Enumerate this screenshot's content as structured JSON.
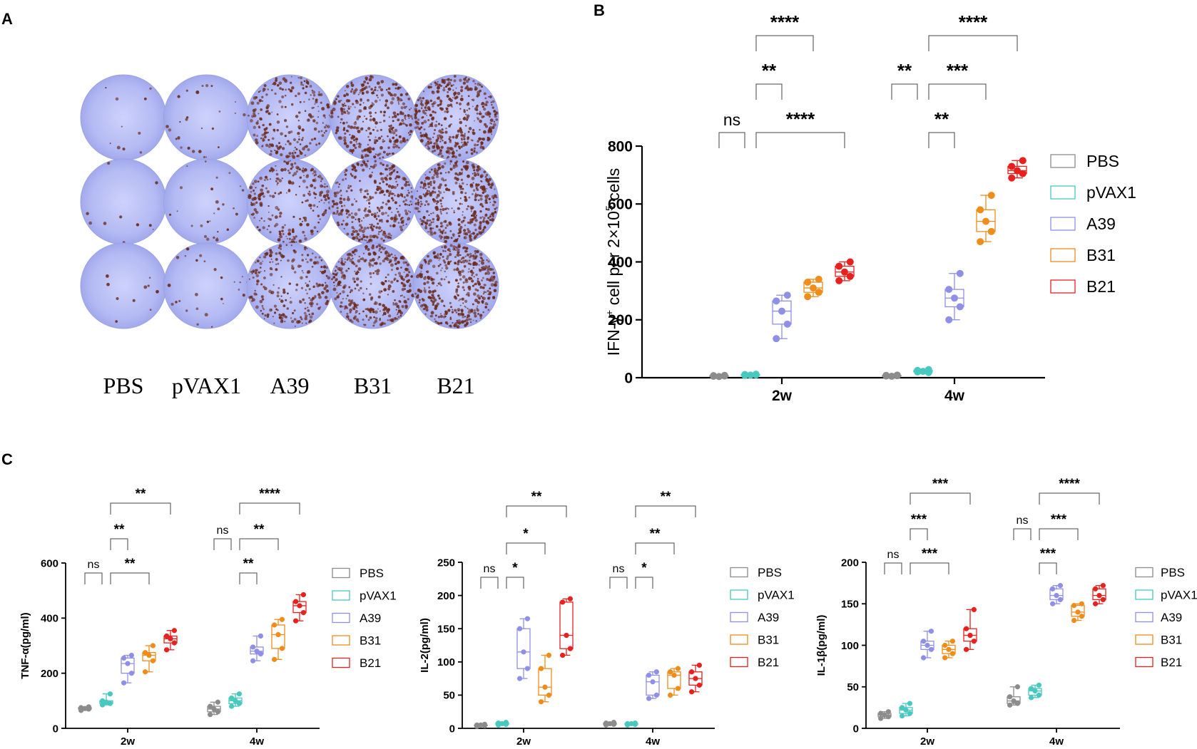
{
  "panel_letters": {
    "a": "A",
    "b": "B",
    "c": "C"
  },
  "colors": {
    "PBS": "#8c8c8c",
    "pVAX1": "#48c9c0",
    "A39": "#8f8fe8",
    "B31": "#f08c1a",
    "B21": "#e8201e",
    "well": "#b3b9f2",
    "spot": "#6a2a1c"
  },
  "panel_a": {
    "group_labels": [
      "PBS",
      "pVAX1",
      "A39",
      "B31",
      "B21"
    ],
    "spot_density": [
      0.02,
      0.06,
      0.55,
      0.8,
      1.0
    ]
  },
  "chart_data": [
    {
      "id": "B",
      "type": "box",
      "title": "",
      "xlabel": "",
      "ylabel_parts": [
        "IFN-γ",
        "+",
        " cell per 2×10",
        "5",
        " cells"
      ],
      "ylim": [
        0,
        800
      ],
      "yticks": [
        0,
        200,
        400,
        600,
        800
      ],
      "categories": [
        "2w",
        "4w"
      ],
      "legend": [
        "PBS",
        "pVAX1",
        "A39",
        "B31",
        "B21"
      ],
      "series": [
        {
          "name": "PBS",
          "values": [
            [
              5,
              8,
              4,
              7,
              6
            ],
            [
              6,
              9,
              5,
              8,
              7
            ]
          ]
        },
        {
          "name": "pVAX1",
          "values": [
            [
              8,
              12,
              9,
              11,
              10
            ],
            [
              20,
              28,
              22,
              25,
              18
            ]
          ]
        },
        {
          "name": "A39",
          "values": [
            [
              135,
              185,
              230,
              265,
              285
            ],
            [
              200,
              245,
              275,
              305,
              360
            ]
          ]
        },
        {
          "name": "B31",
          "values": [
            [
              280,
              295,
              310,
              330,
              340
            ],
            [
              470,
              505,
              540,
              580,
              630
            ]
          ]
        },
        {
          "name": "B21",
          "values": [
            [
              335,
              350,
              365,
              385,
              400
            ],
            [
              690,
              705,
              715,
              730,
              750
            ]
          ]
        }
      ],
      "brackets": [
        {
          "cat": 0,
          "from": 0,
          "to": 1,
          "level": 0,
          "label": "ns"
        },
        {
          "cat": 0,
          "from": 1,
          "to": 4,
          "level": 0,
          "label": "****"
        },
        {
          "cat": 0,
          "from": 1,
          "to": 2,
          "level": 1,
          "label": "**"
        },
        {
          "cat": 0,
          "from": 1,
          "to": 3,
          "level": 2,
          "label": "****"
        },
        {
          "cat": 1,
          "from": 1,
          "to": 2,
          "level": 0,
          "label": "**"
        },
        {
          "cat": 1,
          "from": 0,
          "to": 1,
          "level": 1,
          "label": "**"
        },
        {
          "cat": 1,
          "from": 1,
          "to": 3,
          "level": 1,
          "label": "***"
        },
        {
          "cat": 1,
          "from": 1,
          "to": 4,
          "level": 2,
          "label": "****"
        }
      ]
    },
    {
      "id": "C1",
      "type": "box",
      "ylabel": "TNF-α(pg/ml)",
      "ylim": [
        0,
        600
      ],
      "yticks": [
        0,
        200,
        400,
        600
      ],
      "categories": [
        "2w",
        "4w"
      ],
      "legend": [
        "PBS",
        "pVAX1",
        "A39",
        "B31",
        "B21"
      ],
      "series": [
        {
          "name": "PBS",
          "values": [
            [
              65,
              70,
              72,
              75,
              78
            ],
            [
              50,
              60,
              70,
              80,
              95
            ]
          ]
        },
        {
          "name": "pVAX1",
          "values": [
            [
              85,
              90,
              95,
              100,
              125
            ],
            [
              80,
              90,
              100,
              110,
              125
            ]
          ]
        },
        {
          "name": "A39",
          "values": [
            [
              165,
              200,
              235,
              255,
              265
            ],
            [
              245,
              270,
              280,
              295,
              335
            ]
          ]
        },
        {
          "name": "B31",
          "values": [
            [
              205,
              245,
              265,
              275,
              300
            ],
            [
              250,
              290,
              340,
              375,
              395
            ]
          ]
        },
        {
          "name": "B21",
          "values": [
            [
              285,
              310,
              325,
              335,
              355
            ],
            [
              390,
              420,
              445,
              460,
              485
            ]
          ]
        }
      ],
      "brackets": [
        {
          "cat": 0,
          "from": 0,
          "to": 1,
          "level": 0,
          "label": "ns"
        },
        {
          "cat": 0,
          "from": 1,
          "to": 3,
          "level": 0,
          "label": "**"
        },
        {
          "cat": 0,
          "from": 1,
          "to": 2,
          "level": 1,
          "label": "**"
        },
        {
          "cat": 0,
          "from": 1,
          "to": 4,
          "level": 2,
          "label": "**"
        },
        {
          "cat": 1,
          "from": 1,
          "to": 2,
          "level": 0,
          "label": "**"
        },
        {
          "cat": 1,
          "from": 0,
          "to": 1,
          "level": 1,
          "label": "ns"
        },
        {
          "cat": 1,
          "from": 1,
          "to": 3,
          "level": 1,
          "label": "**"
        },
        {
          "cat": 1,
          "from": 1,
          "to": 4,
          "level": 2,
          "label": "****"
        }
      ]
    },
    {
      "id": "C2",
      "type": "box",
      "ylabel": "IL-2(pg/ml)",
      "ylim": [
        0,
        250
      ],
      "yticks": [
        0,
        50,
        100,
        150,
        200,
        250
      ],
      "categories": [
        "2w",
        "4w"
      ],
      "legend": [
        "PBS",
        "pVAX1",
        "A39",
        "B31",
        "B21"
      ],
      "series": [
        {
          "name": "PBS",
          "values": [
            [
              3,
              4,
              5,
              5,
              6
            ],
            [
              5,
              6,
              7,
              8,
              9
            ]
          ]
        },
        {
          "name": "pVAX1",
          "values": [
            [
              5,
              6,
              7,
              8,
              9
            ],
            [
              5,
              6,
              7,
              7,
              8
            ]
          ]
        },
        {
          "name": "A39",
          "values": [
            [
              75,
              90,
              115,
              150,
              165
            ],
            [
              45,
              50,
              70,
              80,
              85
            ]
          ]
        },
        {
          "name": "B31",
          "values": [
            [
              40,
              50,
              62,
              90,
              110
            ],
            [
              50,
              60,
              80,
              85,
              90
            ]
          ]
        },
        {
          "name": "B21",
          "values": [
            [
              110,
              120,
              140,
              190,
              195
            ],
            [
              55,
              65,
              75,
              85,
              95
            ]
          ]
        }
      ],
      "brackets": [
        {
          "cat": 0,
          "from": 0,
          "to": 1,
          "level": 0,
          "label": "ns"
        },
        {
          "cat": 0,
          "from": 1,
          "to": 2,
          "level": 0,
          "label": "*"
        },
        {
          "cat": 0,
          "from": 1,
          "to": 3,
          "level": 1,
          "label": "*"
        },
        {
          "cat": 0,
          "from": 1,
          "to": 4,
          "level": 2,
          "label": "**"
        },
        {
          "cat": 1,
          "from": 0,
          "to": 1,
          "level": 0,
          "label": "ns"
        },
        {
          "cat": 1,
          "from": 1,
          "to": 2,
          "level": 0,
          "label": "*"
        },
        {
          "cat": 1,
          "from": 1,
          "to": 3,
          "level": 1,
          "label": "**"
        },
        {
          "cat": 1,
          "from": 1,
          "to": 4,
          "level": 2,
          "label": "**"
        }
      ]
    },
    {
      "id": "C3",
      "type": "box",
      "ylabel": "IL-1β(pg/ml)",
      "ylim": [
        0,
        200
      ],
      "yticks": [
        0,
        50,
        100,
        150,
        200
      ],
      "categories": [
        "2w",
        "4w"
      ],
      "legend": [
        "PBS",
        "pVAX1",
        "A39",
        "B31",
        "B21"
      ],
      "series": [
        {
          "name": "PBS",
          "values": [
            [
              12,
              14,
              16,
              18,
              20
            ],
            [
              28,
              30,
              33,
              38,
              50
            ]
          ]
        },
        {
          "name": "pVAX1",
          "values": [
            [
              15,
              18,
              22,
              25,
              30
            ],
            [
              37,
              40,
              45,
              48,
              52
            ]
          ]
        },
        {
          "name": "A39",
          "values": [
            [
              85,
              95,
              100,
              105,
              117
            ],
            [
              150,
              155,
              160,
              168,
              172
            ]
          ]
        },
        {
          "name": "B31",
          "values": [
            [
              85,
              90,
              95,
              100,
              105
            ],
            [
              130,
              135,
              140,
              148,
              150
            ]
          ]
        },
        {
          "name": "B21",
          "values": [
            [
              95,
              105,
              112,
              120,
              143
            ],
            [
              150,
              155,
              160,
              168,
              172
            ]
          ]
        }
      ],
      "brackets": [
        {
          "cat": 0,
          "from": 0,
          "to": 1,
          "level": 0,
          "label": "ns"
        },
        {
          "cat": 0,
          "from": 1,
          "to": 3,
          "level": 0,
          "label": "***"
        },
        {
          "cat": 0,
          "from": 1,
          "to": 2,
          "level": 1,
          "label": "***"
        },
        {
          "cat": 0,
          "from": 1,
          "to": 4,
          "level": 2,
          "label": "***"
        },
        {
          "cat": 1,
          "from": 1,
          "to": 2,
          "level": 0,
          "label": "***"
        },
        {
          "cat": 1,
          "from": 0,
          "to": 1,
          "level": 1,
          "label": "ns"
        },
        {
          "cat": 1,
          "from": 1,
          "to": 3,
          "level": 1,
          "label": "***"
        },
        {
          "cat": 1,
          "from": 1,
          "to": 4,
          "level": 2,
          "label": "****"
        }
      ]
    }
  ]
}
